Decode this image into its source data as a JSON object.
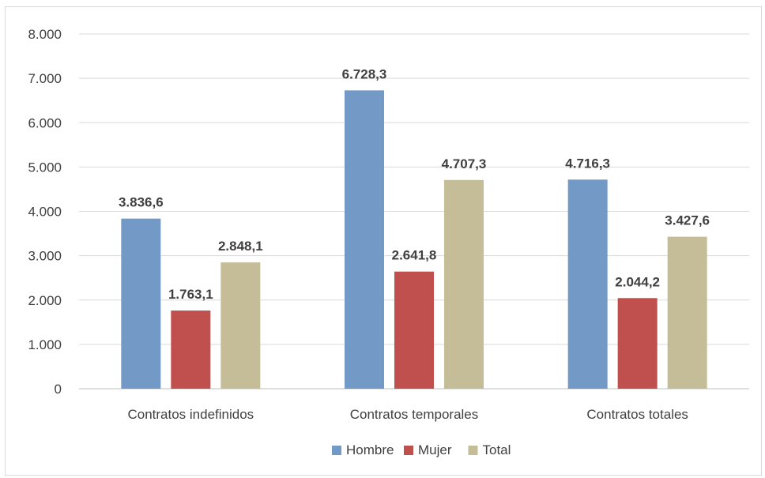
{
  "chart_data": {
    "type": "bar",
    "categories": [
      "Contratos indefinidos",
      "Contratos temporales",
      "Contratos totales"
    ],
    "series": [
      {
        "name": "Hombre",
        "color": "#7399c6",
        "values": [
          3836.6,
          6728.3,
          4716.3
        ],
        "labels": [
          "3.836,6",
          "6.728,3",
          "4.716,3"
        ]
      },
      {
        "name": "Mujer",
        "color": "#c0504d",
        "values": [
          1763.1,
          2641.8,
          2044.2
        ],
        "labels": [
          "1.763,1",
          "2.641,8",
          "2.044,2"
        ]
      },
      {
        "name": "Total",
        "color": "#c4bd97",
        "values": [
          2848.1,
          4707.3,
          3427.6
        ],
        "labels": [
          "2.848,1",
          "4.707,3",
          "3.427,6"
        ]
      }
    ],
    "yticks": [
      "0",
      "1.000",
      "2.000",
      "3.000",
      "4.000",
      "5.000",
      "6.000",
      "7.000",
      "8.000"
    ],
    "ylim": [
      0,
      8000
    ],
    "grid": true,
    "legend_position": "bottom"
  }
}
